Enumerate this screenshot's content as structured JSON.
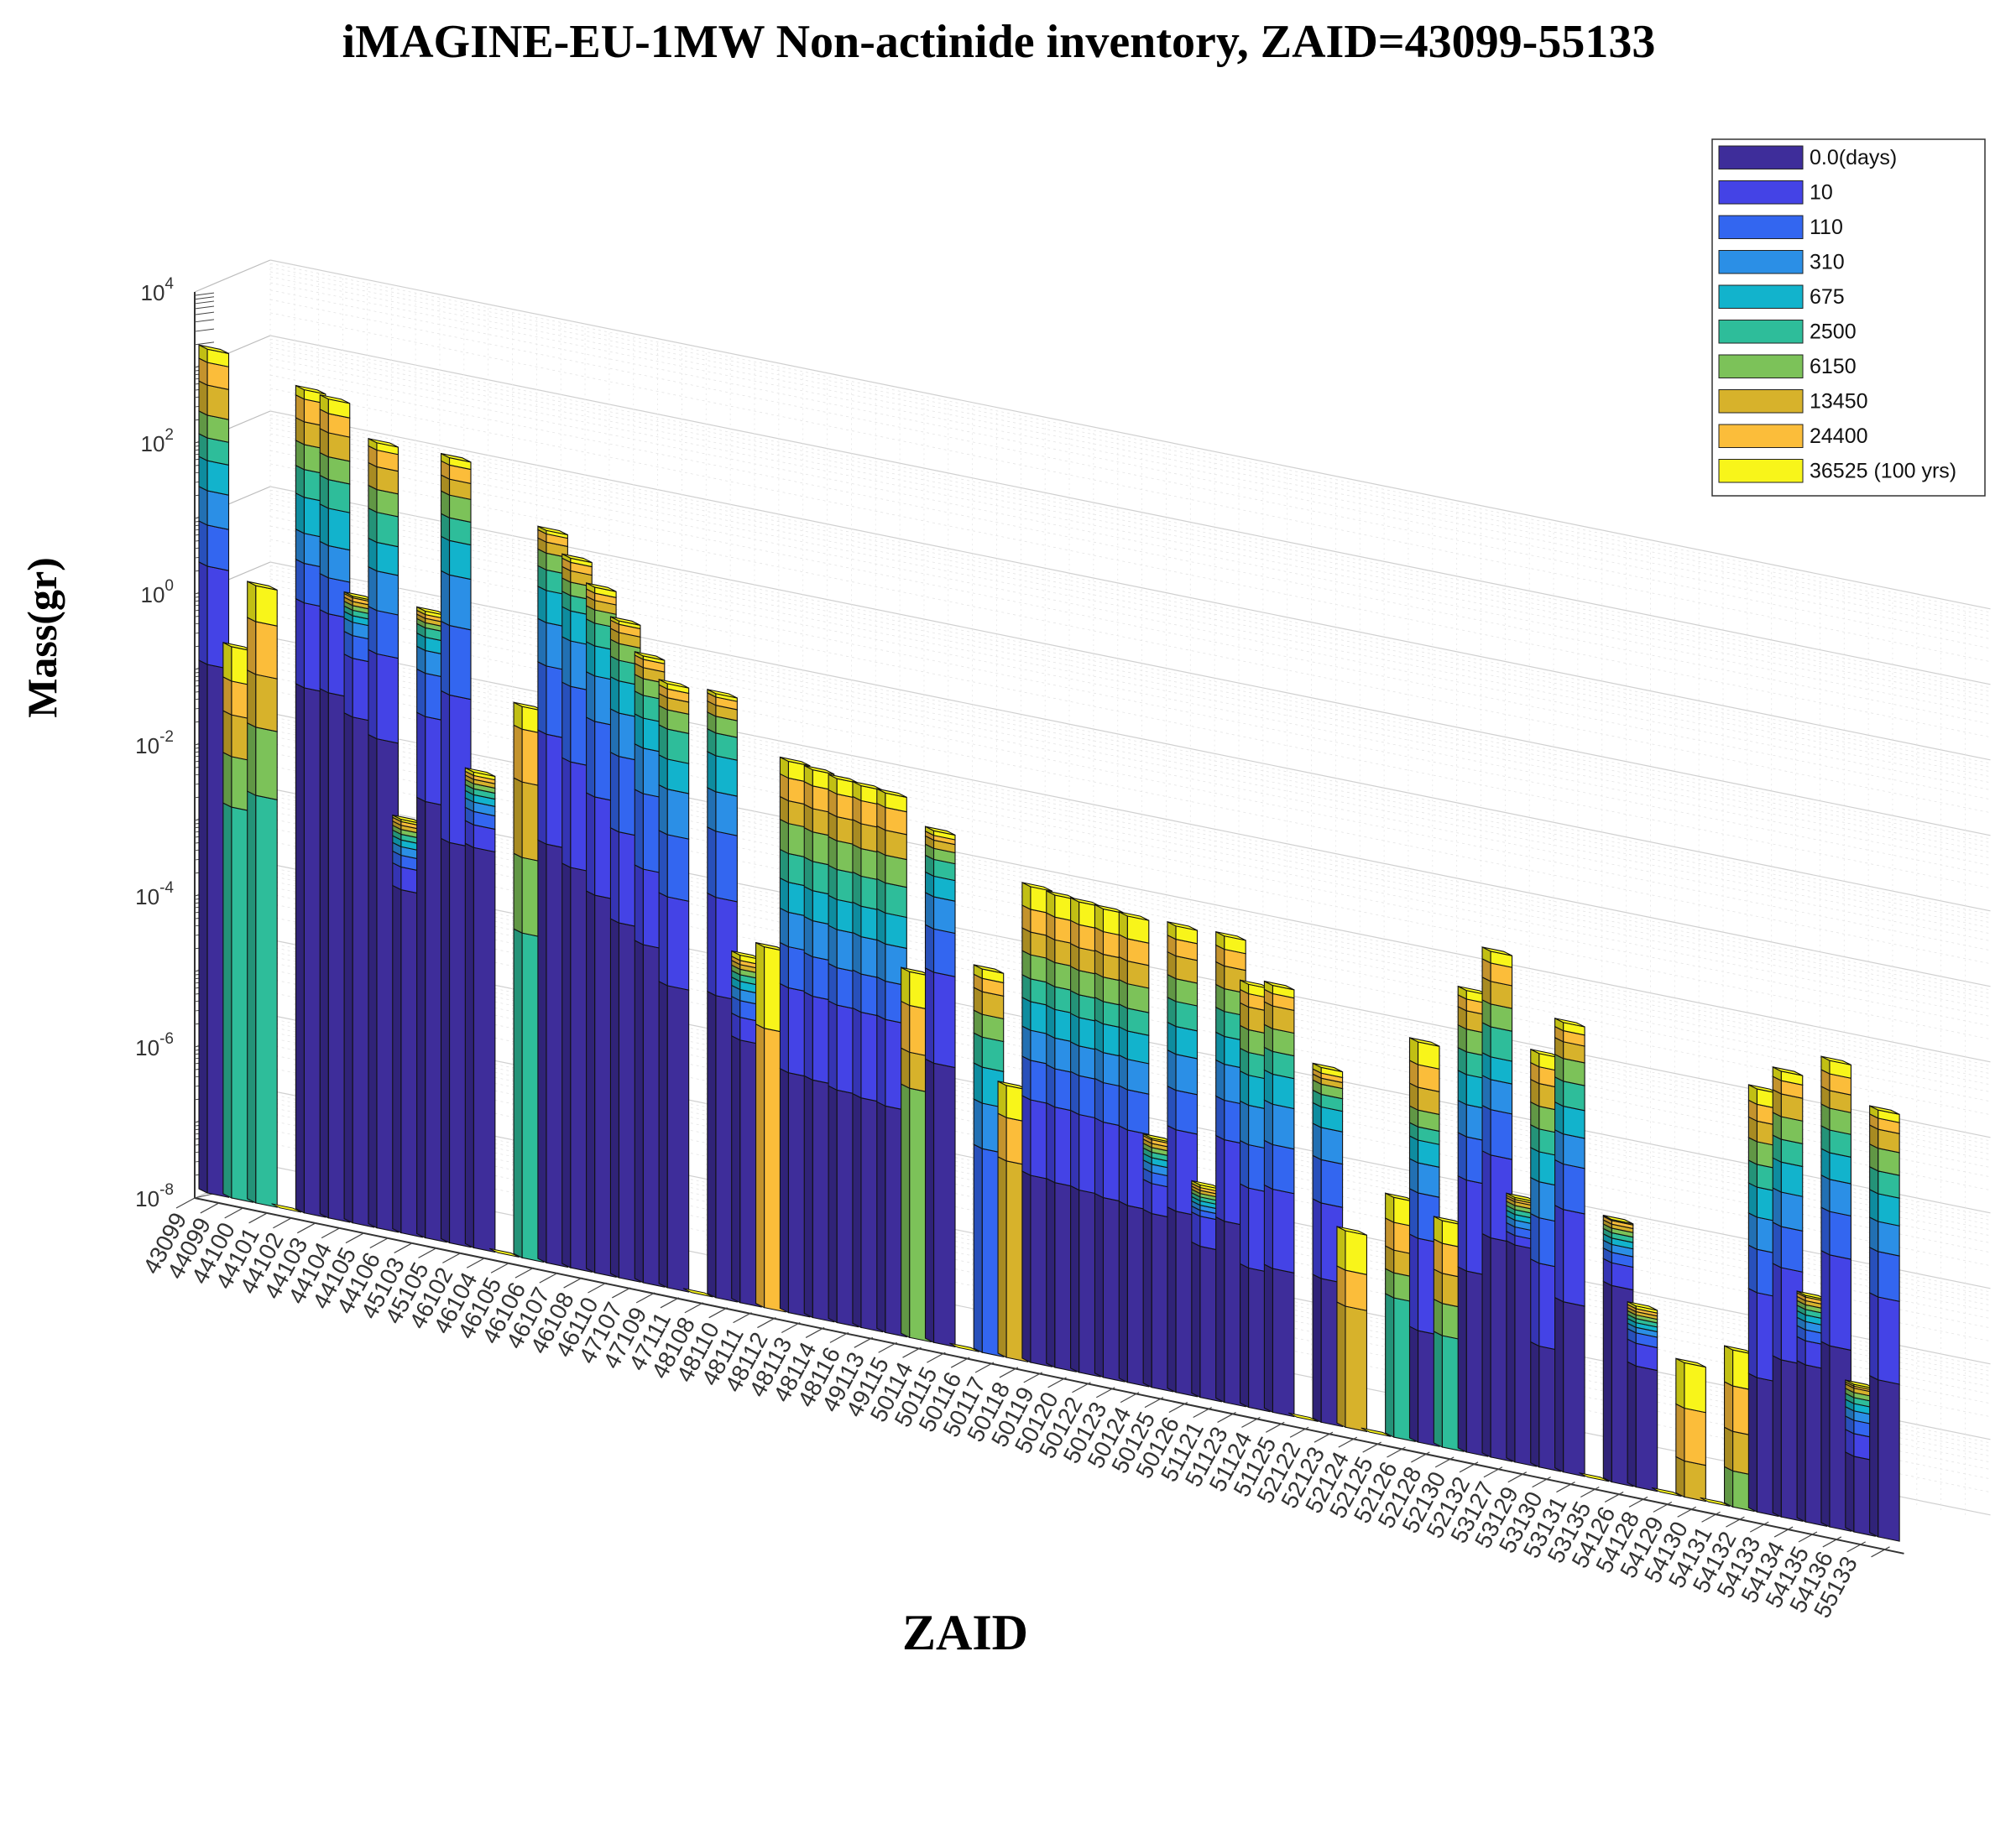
{
  "chart_data": {
    "type": "bar",
    "title": "iMAGINE-EU-1MW Non-actinide inventory, ZAID=43099-55133",
    "xlabel": "ZAID",
    "ylabel": "Mass(gr)",
    "yscale": "log",
    "ylim": [
      1e-08,
      10000
    ],
    "yticks": [
      {
        "base": "10",
        "exp": "4",
        "value": 10000
      },
      {
        "base": "10",
        "exp": "2",
        "value": 100
      },
      {
        "base": "10",
        "exp": "0",
        "value": 1
      },
      {
        "base": "10",
        "exp": "-2",
        "value": 0.01
      },
      {
        "base": "10",
        "exp": "-4",
        "value": 0.0001
      },
      {
        "base": "10",
        "exp": "-6",
        "value": 1e-06
      },
      {
        "base": "10",
        "exp": "-8",
        "value": 1e-08
      }
    ],
    "grid": true,
    "legend_position": "top-right",
    "series": [
      {
        "name": "0.0(days)",
        "color": "#3e2d9a"
      },
      {
        "name": "10",
        "color": "#4443e6"
      },
      {
        "name": "110",
        "color": "#3366f0"
      },
      {
        "name": "310",
        "color": "#2b8fe6"
      },
      {
        "name": "675",
        "color": "#12b3cc"
      },
      {
        "name": "2500",
        "color": "#2ebd9a"
      },
      {
        "name": "6150",
        "color": "#7cc259"
      },
      {
        "name": "13450",
        "color": "#d7b22b"
      },
      {
        "name": "24400",
        "color": "#fbbd3a"
      },
      {
        "name": "36525 (100 yrs)",
        "color": "#f8f51a"
      }
    ],
    "categories": [
      "43099",
      "44099",
      "44100",
      "44101",
      "44102",
      "44103",
      "44104",
      "44105",
      "44106",
      "45103",
      "45105",
      "46102",
      "46104",
      "46105",
      "46106",
      "46107",
      "46108",
      "46110",
      "47107",
      "47109",
      "47111",
      "48108",
      "48110",
      "48111",
      "48112",
      "48113",
      "48114",
      "48116",
      "49113",
      "49115",
      "50114",
      "50115",
      "50116",
      "50117",
      "50118",
      "50119",
      "50120",
      "50122",
      "50123",
      "50124",
      "50125",
      "50126",
      "51121",
      "51123",
      "51124",
      "51125",
      "52122",
      "52123",
      "52124",
      "52125",
      "52126",
      "52128",
      "52130",
      "52132",
      "53127",
      "53129",
      "53130",
      "53131",
      "53135",
      "54126",
      "54128",
      "54129",
      "54130",
      "54131",
      "54132",
      "54133",
      "54134",
      "54135",
      "54136",
      "55133"
    ],
    "bars": [
      {
        "zaid": "43099",
        "values": [
          0.1,
          2,
          7,
          20,
          50,
          100,
          200,
          500,
          1000,
          1500
        ]
      },
      {
        "zaid": "44099",
        "values": [
          null,
          null,
          null,
          null,
          null,
          0.0015,
          0.007,
          0.025,
          0.07,
          0.2
        ]
      },
      {
        "zaid": "44100",
        "values": [
          null,
          null,
          null,
          null,
          null,
          0.0025,
          0.02,
          0.1,
          0.5,
          1.5
        ]
      },
      {
        "zaid": "44101",
        "values": [
          null,
          null,
          null,
          null,
          null,
          null,
          null,
          null,
          null,
          null
        ]
      },
      {
        "zaid": "44102",
        "values": [
          0.09,
          1.2,
          4,
          10,
          30,
          70,
          150,
          300,
          600,
          800
        ]
      },
      {
        "zaid": "44103",
        "values": [
          0.09,
          1.0,
          3,
          8,
          25,
          60,
          120,
          250,
          450,
          700
        ]
      },
      {
        "zaid": "44104",
        "values": [
          0.05,
          0.3,
          0.6,
          0.9,
          1.1,
          1.3,
          1.5,
          1.7,
          1.9,
          2.0
        ]
      },
      {
        "zaid": "44105",
        "values": [
          0.03,
          0.4,
          1.5,
          5,
          12,
          30,
          60,
          120,
          200,
          250
        ]
      },
      {
        "zaid": "44106",
        "values": [
          0.00035,
          0.0007,
          0.001,
          0.0013,
          0.0016,
          0.0019,
          0.0022,
          0.0025,
          0.0028,
          0.003
        ]
      },
      {
        "zaid": "45103",
        "values": [
          0.006,
          0.08,
          0.3,
          0.6,
          0.9,
          1.2,
          1.4,
          1.6,
          1.8,
          2.0
        ]
      },
      {
        "zaid": "45105",
        "values": [
          0.002,
          0.18,
          1.5,
          7,
          20,
          40,
          80,
          130,
          200,
          250
        ]
      },
      {
        "zaid": "46102",
        "values": [
          0.002,
          0.004,
          0.006,
          0.008,
          0.01,
          0.012,
          0.014,
          0.016,
          0.018,
          0.02
        ]
      },
      {
        "zaid": "46104",
        "values": [
          null,
          null,
          null,
          null,
          null,
          null,
          null,
          null,
          null,
          null
        ]
      },
      {
        "zaid": "46105",
        "values": [
          null,
          null,
          null,
          null,
          null,
          0.0002,
          0.002,
          0.02,
          0.1,
          0.2
        ]
      },
      {
        "zaid": "46106",
        "values": [
          0.0035,
          0.1,
          0.8,
          3,
          8,
          15,
          25,
          35,
          45,
          50
        ]
      },
      {
        "zaid": "46107",
        "values": [
          0.002,
          0.05,
          0.5,
          2,
          5,
          8,
          12,
          17,
          22,
          25
        ]
      },
      {
        "zaid": "46108",
        "values": [
          0.001,
          0.02,
          0.2,
          0.8,
          2,
          4,
          6,
          8,
          10,
          12
        ]
      },
      {
        "zaid": "46110",
        "values": [
          0.0005,
          0.008,
          0.08,
          0.3,
          0.8,
          1.5,
          2.5,
          3.5,
          4.5,
          5
        ]
      },
      {
        "zaid": "47107",
        "values": [
          0.0003,
          0.003,
          0.03,
          0.12,
          0.3,
          0.6,
          1.0,
          1.4,
          1.8,
          2.0
        ]
      },
      {
        "zaid": "47109",
        "values": [
          0.0001,
          0.0015,
          0.01,
          0.04,
          0.1,
          0.25,
          0.45,
          0.65,
          0.85,
          1.0
        ]
      },
      {
        "zaid": "47111",
        "values": [
          null,
          null,
          null,
          null,
          null,
          null,
          null,
          null,
          null,
          null
        ]
      },
      {
        "zaid": "48108",
        "values": [
          0.0001,
          0.002,
          0.015,
          0.05,
          0.15,
          0.3,
          0.5,
          0.7,
          0.9,
          1.0
        ]
      },
      {
        "zaid": "48110",
        "values": [
          3e-05,
          6e-05,
          0.0001,
          0.00014,
          0.00018,
          0.00022,
          0.00026,
          0.0003,
          0.00034,
          0.0004
        ]
      },
      {
        "zaid": "48111",
        "values": [
          null,
          null,
          null,
          null,
          null,
          null,
          null,
          null,
          5e-05,
          0.0006
        ]
      },
      {
        "zaid": "48112",
        "values": [
          1.5e-05,
          0.0002,
          0.0007,
          0.002,
          0.005,
          0.012,
          0.03,
          0.06,
          0.12,
          0.2
        ]
      },
      {
        "zaid": "48113",
        "values": [
          1.4e-05,
          0.00018,
          0.0006,
          0.0018,
          0.0045,
          0.011,
          0.027,
          0.055,
          0.11,
          0.18
        ]
      },
      {
        "zaid": "48114",
        "values": [
          1.2e-05,
          0.00016,
          0.0005,
          0.0016,
          0.004,
          0.01,
          0.024,
          0.05,
          0.1,
          0.16
        ]
      },
      {
        "zaid": "48116",
        "values": [
          1.1e-05,
          0.00015,
          0.00048,
          0.0015,
          0.0038,
          0.0095,
          0.022,
          0.047,
          0.095,
          0.15
        ]
      },
      {
        "zaid": "49113",
        "values": [
          1e-05,
          0.00014,
          0.00045,
          0.0014,
          0.0036,
          0.009,
          0.021,
          0.045,
          0.09,
          0.14
        ]
      },
      {
        "zaid": "49115",
        "values": [
          null,
          null,
          null,
          null,
          null,
          null,
          2e-05,
          6e-05,
          0.00025,
          0.0007
        ]
      },
      {
        "zaid": "50114",
        "values": [
          5e-05,
          0.0008,
          0.003,
          0.008,
          0.015,
          0.025,
          0.035,
          0.045,
          0.052,
          0.06
        ]
      },
      {
        "zaid": "50115",
        "values": [
          null,
          null,
          null,
          null,
          null,
          null,
          null,
          null,
          null,
          null
        ]
      },
      {
        "zaid": "50116",
        "values": [
          null,
          null,
          5e-06,
          2e-05,
          6e-05,
          0.00015,
          0.0003,
          0.0006,
          0.0009,
          0.0012
        ]
      },
      {
        "zaid": "50117",
        "values": [
          null,
          null,
          null,
          null,
          null,
          null,
          null,
          4e-06,
          1.5e-05,
          4e-05
        ]
      },
      {
        "zaid": "50118",
        "values": [
          3e-06,
          3e-05,
          0.0001,
          0.00025,
          0.0006,
          0.0012,
          0.0025,
          0.005,
          0.01,
          0.02
        ]
      },
      {
        "zaid": "50119",
        "values": [
          2.8e-06,
          2.8e-05,
          9e-05,
          0.00023,
          0.00055,
          0.0011,
          0.0023,
          0.0046,
          0.0092,
          0.018
        ]
      },
      {
        "zaid": "50120",
        "values": [
          2.6e-06,
          2.6e-05,
          8.5e-05,
          0.00021,
          0.0005,
          0.001,
          0.0021,
          0.0042,
          0.0085,
          0.017
        ]
      },
      {
        "zaid": "50122",
        "values": [
          2.4e-06,
          2.4e-05,
          8e-05,
          0.0002,
          0.00048,
          0.00095,
          0.002,
          0.004,
          0.008,
          0.016
        ]
      },
      {
        "zaid": "50123",
        "values": [
          2.2e-06,
          2.2e-05,
          7.5e-05,
          0.00019,
          0.00045,
          0.0009,
          0.0019,
          0.0038,
          0.0075,
          0.015
        ]
      },
      {
        "zaid": "50124",
        "values": [
          2e-06,
          5e-06,
          7e-06,
          9e-06,
          1.1e-05,
          1.3e-05,
          1.5e-05,
          1.7e-05,
          1.9e-05,
          2e-05
        ]
      },
      {
        "zaid": "50125",
        "values": [
          2.5e-06,
          3e-05,
          0.0001,
          0.0003,
          0.0007,
          0.0015,
          0.003,
          0.006,
          0.01,
          0.015
        ]
      },
      {
        "zaid": "50126",
        "values": [
          1e-06,
          2.5e-06,
          3e-06,
          3.5e-06,
          4e-06,
          4.5e-06,
          5e-06,
          5.5e-06,
          6e-06,
          6.5e-06
        ]
      },
      {
        "zaid": "51121",
        "values": [
          2.5e-06,
          3e-05,
          0.0001,
          0.0003,
          0.0007,
          0.0015,
          0.003,
          0.006,
          0.01,
          0.015
        ]
      },
      {
        "zaid": "51123",
        "values": [
          7e-07,
          8e-06,
          3e-05,
          0.0001,
          0.00025,
          0.0005,
          0.001,
          0.002,
          0.003,
          0.004
        ]
      },
      {
        "zaid": "51124",
        "values": [
          8e-07,
          9e-06,
          3.5e-05,
          0.00012,
          0.0003,
          0.0006,
          0.0012,
          0.0024,
          0.0035,
          0.0045
        ]
      },
      {
        "zaid": "51125",
        "values": [
          null,
          null,
          null,
          null,
          null,
          null,
          null,
          null,
          null,
          null
        ]
      },
      {
        "zaid": "52122",
        "values": [
          8e-07,
          8e-06,
          3e-05,
          8e-05,
          0.00015,
          0.00022,
          0.0003,
          0.00036,
          0.00042,
          0.0005
        ]
      },
      {
        "zaid": "52123",
        "values": [
          null,
          null,
          null,
          null,
          null,
          null,
          null,
          4e-07,
          1.2e-06,
          4e-06
        ]
      },
      {
        "zaid": "52124",
        "values": [
          null,
          null,
          null,
          null,
          null,
          null,
          null,
          null,
          null,
          null
        ]
      },
      {
        "zaid": "52125",
        "values": [
          null,
          null,
          null,
          null,
          null,
          7e-07,
          1.5e-06,
          3e-06,
          7e-06,
          1.5e-05
        ]
      },
      {
        "zaid": "52126",
        "values": [
          3e-07,
          5e-06,
          2e-05,
          5e-05,
          0.0001,
          0.00015,
          0.00025,
          0.0005,
          0.001,
          0.002
        ]
      },
      {
        "zaid": "52128",
        "values": [
          null,
          null,
          null,
          null,
          null,
          3e-07,
          8e-07,
          2e-06,
          5e-06,
          1e-05
        ]
      },
      {
        "zaid": "52130",
        "values": [
          2.5e-06,
          4e-05,
          0.00015,
          0.0004,
          0.001,
          0.002,
          0.004,
          0.007,
          0.01,
          0.013
        ]
      },
      {
        "zaid": "52132",
        "values": [
          8e-06,
          0.0001,
          0.0004,
          0.001,
          0.002,
          0.005,
          0.01,
          0.02,
          0.035,
          0.05
        ]
      },
      {
        "zaid": "53127",
        "values": [
          7.5e-06,
          1e-05,
          1.3e-05,
          1.6e-05,
          1.9e-05,
          2.2e-05,
          2.5e-05,
          2.8e-05,
          3e-05,
          3.2e-05
        ]
      },
      {
        "zaid": "53129",
        "values": [
          4e-07,
          5e-06,
          2e-05,
          6e-05,
          0.00015,
          0.0003,
          0.0006,
          0.0012,
          0.002,
          0.003
        ]
      },
      {
        "zaid": "53130",
        "values": [
          1.8e-06,
          3e-05,
          0.00012,
          0.0003,
          0.0007,
          0.0015,
          0.003,
          0.005,
          0.007,
          0.009
        ]
      },
      {
        "zaid": "53131",
        "values": [
          null,
          null,
          null,
          null,
          null,
          null,
          null,
          null,
          null,
          null
        ]
      },
      {
        "zaid": "53135",
        "values": [
          4e-06,
          8e-06,
          1.1e-05,
          1.4e-05,
          1.7e-05,
          2e-05,
          2.3e-05,
          2.6e-05,
          2.9e-05,
          3e-05
        ]
      },
      {
        "zaid": "54126",
        "values": [
          4e-07,
          8e-07,
          1.1e-06,
          1.3e-06,
          1.5e-06,
          1.7e-06,
          1.9e-06,
          2.1e-06,
          2.3e-06,
          2.5e-06
        ]
      },
      {
        "zaid": "54128",
        "values": [
          null,
          null,
          null,
          null,
          null,
          null,
          null,
          null,
          null,
          null
        ]
      },
      {
        "zaid": "54129",
        "values": [
          null,
          null,
          null,
          null,
          null,
          null,
          5e-09,
          3e-08,
          1.5e-07,
          6e-07
        ]
      },
      {
        "zaid": "54130",
        "values": [
          null,
          null,
          null,
          null,
          null,
          null,
          null,
          null,
          null,
          null
        ]
      },
      {
        "zaid": "54131",
        "values": [
          null,
          null,
          null,
          null,
          null,
          null,
          3e-08,
          1e-07,
          4e-07,
          1.2e-06
        ]
      },
      {
        "zaid": "54132",
        "values": [
          6e-07,
          8e-06,
          3e-05,
          8e-05,
          0.0002,
          0.0004,
          0.0008,
          0.0015,
          0.0025,
          0.004
        ]
      },
      {
        "zaid": "54133",
        "values": [
          1.2e-06,
          2e-05,
          7e-05,
          0.0002,
          0.0005,
          0.001,
          0.002,
          0.004,
          0.006,
          0.008
        ]
      },
      {
        "zaid": "54134",
        "values": [
          1.2e-06,
          2.5e-06,
          3.5e-06,
          4.5e-06,
          5.5e-06,
          6.5e-06,
          7.5e-06,
          8.5e-06,
          9.5e-06,
          1e-05
        ]
      },
      {
        "zaid": "54135",
        "values": [
          2.5e-06,
          4e-05,
          0.00015,
          0.0004,
          0.0009,
          0.0018,
          0.0035,
          0.006,
          0.01,
          0.015
        ]
      },
      {
        "zaid": "54136",
        "values": [
          1e-07,
          2e-07,
          3e-07,
          4e-07,
          5e-07,
          6e-07,
          7e-07,
          8e-07,
          8.5e-07,
          9e-07
        ]
      },
      {
        "zaid": "55133",
        "values": [
          1.2e-06,
          1.5e-05,
          6e-05,
          0.00015,
          0.00035,
          0.0007,
          0.0014,
          0.0025,
          0.0035,
          0.0045
        ]
      }
    ]
  }
}
